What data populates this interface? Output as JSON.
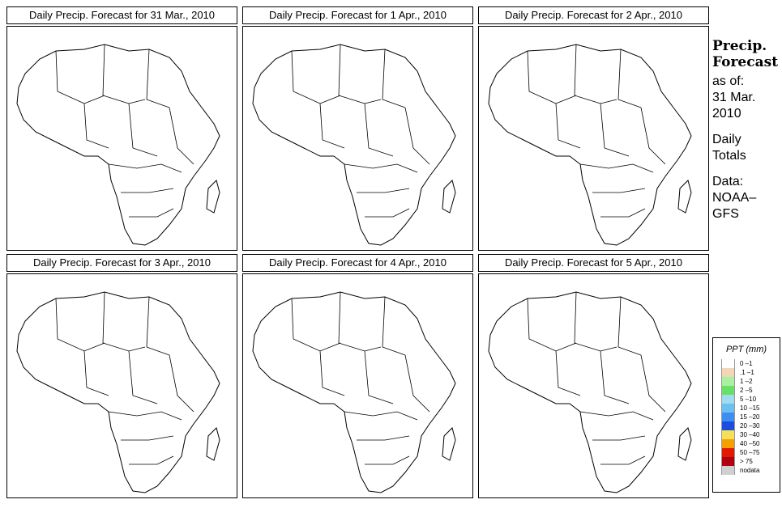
{
  "panels": [
    {
      "title": "Daily Precip. Forecast for  31 Mar., 2010"
    },
    {
      "title": "Daily Precip. Forecast for  1 Apr., 2010"
    },
    {
      "title": "Daily Precip. Forecast for  2 Apr., 2010"
    },
    {
      "title": "Daily Precip. Forecast for  3 Apr., 2010"
    },
    {
      "title": "Daily Precip. Forecast for  4 Apr., 2010"
    },
    {
      "title": "Daily Precip. Forecast for  5 Apr., 2010"
    }
  ],
  "side": {
    "heading1": "Precip.",
    "heading2": "Forecast",
    "asof": "as of:",
    "date1": "31 Mar.",
    "date2": "2010",
    "daily1": "Daily",
    "daily2": "Totals",
    "data1": "Data:",
    "data2": "NOAA–",
    "data3": "GFS"
  },
  "legend": {
    "title": "PPT (mm)",
    "items": [
      {
        "label": "0 –1",
        "color": "#ffffff"
      },
      {
        "label": ".1 –1",
        "color": "#f1d7b5"
      },
      {
        "label": "1 –2",
        "color": "#a9f0a0"
      },
      {
        "label": "2 –5",
        "color": "#66e066"
      },
      {
        "label": "5 –10",
        "color": "#9fdcf0"
      },
      {
        "label": "10 –15",
        "color": "#6cc0f0"
      },
      {
        "label": "15 –20",
        "color": "#3d8ef0"
      },
      {
        "label": "20 –30",
        "color": "#1c4de0"
      },
      {
        "label": "30 –40",
        "color": "#f5e05a"
      },
      {
        "label": "40 –50",
        "color": "#f5a000"
      },
      {
        "label": "50 –75",
        "color": "#e01a00"
      },
      {
        "label": "> 75",
        "color": "#b00010"
      },
      {
        "label": "nodata",
        "color": "#d0d0d0"
      }
    ]
  }
}
